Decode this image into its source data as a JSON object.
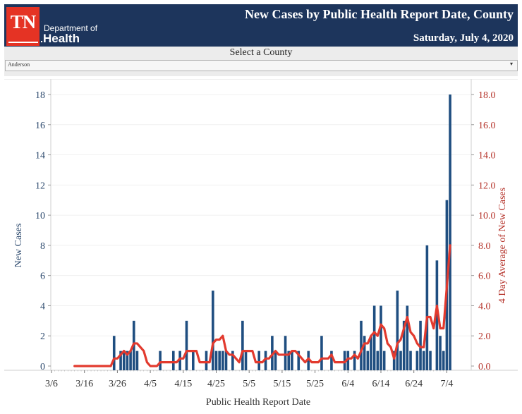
{
  "header": {
    "logo_text": "TN",
    "dept_line1": "Department of",
    "dept_line2": "Health",
    "title": "New Cases by Public Health Report Date, County",
    "date": "Saturday, July 4, 2020"
  },
  "filter": {
    "label": "Select a County",
    "selected": "Anderson",
    "arrow": "▾"
  },
  "colors": {
    "bar": "#1f4e80",
    "line": "#e23a2e",
    "left_axis_text": "#2d4a6e",
    "right_axis_text": "#b5332a",
    "header_bg": "#1d355c",
    "logo_bg": "#e53324"
  },
  "chart_data": {
    "type": "bar",
    "title": "New Cases by Public Health Report Date, County",
    "xlabel": "Public Health Report Date",
    "ylabel": "New Cases",
    "y2label": "4 Day Average of New Cases",
    "ylim": [
      0,
      19
    ],
    "y2lim": [
      0,
      19
    ],
    "yticks": [
      "0",
      "2",
      "4",
      "6",
      "8",
      "10",
      "12",
      "14",
      "16",
      "18"
    ],
    "y2ticks": [
      "0.0",
      "2.0",
      "4.0",
      "6.0",
      "8.0",
      "10.0",
      "12.0",
      "14.0",
      "16.0",
      "18.0"
    ],
    "xticks": [
      "3/6",
      "3/16",
      "3/26",
      "4/5",
      "4/15",
      "4/25",
      "5/5",
      "5/15",
      "5/25",
      "6/4",
      "6/14",
      "6/24",
      "7/4"
    ],
    "grid": true,
    "start_date": "3/6",
    "end_date": "7/4",
    "line_start_date": "3/13",
    "series": [
      {
        "name": "New Cases",
        "type": "bar",
        "values": [
          0,
          0,
          0,
          0,
          0,
          0,
          0,
          0,
          0,
          0,
          0,
          0,
          0,
          0,
          0,
          0,
          0,
          0,
          0,
          2,
          0,
          1,
          1,
          1,
          1,
          3,
          1,
          0,
          0,
          0,
          0,
          0,
          0,
          1,
          0,
          0,
          0,
          1,
          0,
          1,
          0,
          3,
          0,
          1,
          0,
          0,
          0,
          1,
          0,
          5,
          1,
          1,
          1,
          1,
          0,
          1,
          0,
          0,
          3,
          1,
          0,
          0,
          0,
          1,
          0,
          1,
          0,
          2,
          1,
          0,
          0,
          2,
          1,
          1,
          0,
          1,
          0,
          0,
          1,
          0,
          0,
          0,
          2,
          0,
          0,
          1,
          0,
          0,
          0,
          1,
          1,
          0,
          1,
          0,
          3,
          2,
          1,
          2,
          4,
          1,
          4,
          1,
          0,
          0,
          1,
          5,
          1,
          3,
          4,
          1,
          0,
          1,
          3,
          1,
          8,
          1,
          0,
          7,
          2,
          1,
          11,
          18
        ]
      },
      {
        "name": "4 Day Average of New Cases",
        "type": "line",
        "derived_from": "New Cases",
        "window_days": 4
      }
    ]
  }
}
